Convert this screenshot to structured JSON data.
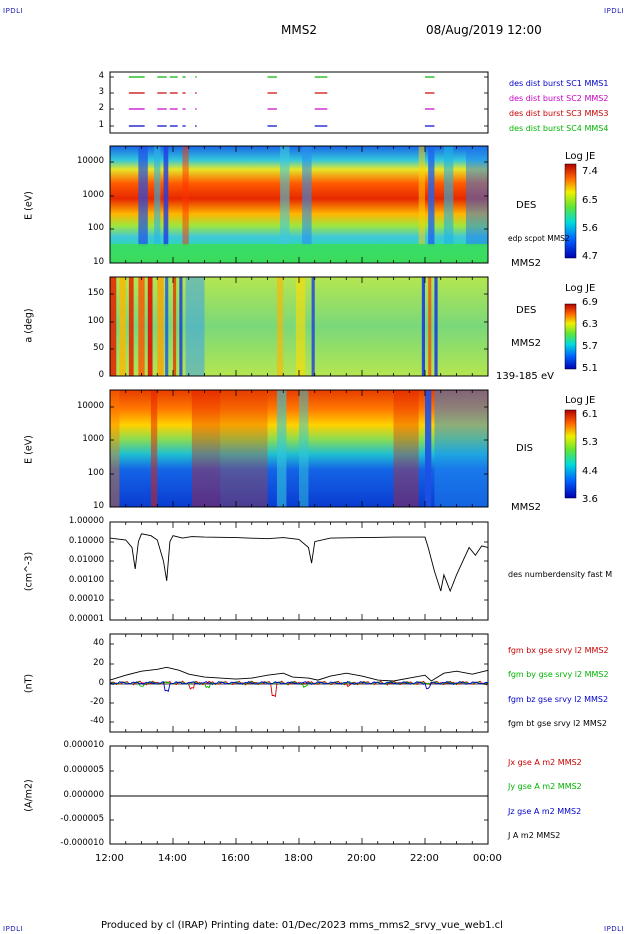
{
  "header": {
    "corner_label": "IPDLI",
    "spacecraft": "MMS2",
    "datetime": "08/Aug/2019 12:00"
  },
  "panels": {
    "burst": {
      "yticks": [
        "4",
        "3",
        "2",
        "1"
      ],
      "legend": [
        {
          "text": "des dist burst SC1 MMS1",
          "color": "#0000c8"
        },
        {
          "text": "des dist burst SC2 MMS2",
          "color": "#c800c8"
        },
        {
          "text": "des dist burst SC3 MMS3",
          "color": "#c80000"
        },
        {
          "text": "des dist burst SC4 MMS4",
          "color": "#00b400"
        }
      ]
    },
    "e_spec": {
      "ylabel": "E (eV)",
      "yticks": [
        "10000",
        "1000",
        "100",
        "10"
      ],
      "right_label": "DES",
      "overlay_label": "edp scpot MMS2",
      "bottom_label": "MMS2",
      "cbar_title": "Log JE",
      "cbar_ticks": [
        "7.4",
        "6.5",
        "5.6",
        "4.7"
      ]
    },
    "pitch": {
      "ylabel": "a (deg)",
      "yticks": [
        "150",
        "100",
        "50",
        "0"
      ],
      "right_label": "DES",
      "mid_label": "MMS2",
      "bottom_label": "139-185 eV",
      "cbar_title": "Log JE",
      "cbar_ticks": [
        "6.9",
        "6.3",
        "5.7",
        "5.1"
      ]
    },
    "i_spec": {
      "ylabel": "E (eV)",
      "yticks": [
        "10000",
        "1000",
        "100",
        "10"
      ],
      "right_label": "DIS",
      "bottom_label": "MMS2",
      "cbar_title": "Log JE",
      "cbar_ticks": [
        "6.1",
        "5.3",
        "4.4",
        "3.6"
      ]
    },
    "density": {
      "ylabel": "(cm^-3)",
      "yticks": [
        "1.00000",
        "0.10000",
        "0.01000",
        "0.00100",
        "0.00010",
        "0.00001"
      ],
      "legend": "des numberdensity fast M"
    },
    "bfield": {
      "ylabel": "(nT)",
      "yticks": [
        "40",
        "20",
        "0",
        "-20",
        "-40"
      ],
      "legend": [
        {
          "text": "fgm bx gse srvy l2 MMS2",
          "color": "#c80000"
        },
        {
          "text": "fgm by gse srvy l2 MMS2",
          "color": "#00b400"
        },
        {
          "text": "fgm bz gse srvy l2 MMS2",
          "color": "#0000c8"
        },
        {
          "text": "fgm bt gse srvy l2 MMS2",
          "color": "#000000"
        }
      ]
    },
    "current": {
      "ylabel": "(A/m2)",
      "yticks": [
        "0.000010",
        "0.000005",
        "0.000000",
        "-0.000005",
        "-0.000010"
      ],
      "legend": [
        {
          "text": "Jx gse A m2 MMS2",
          "color": "#c80000"
        },
        {
          "text": "Jy gse A m2 MMS2",
          "color": "#00b400"
        },
        {
          "text": "Jz gse A m2 MMS2",
          "color": "#0000c8"
        },
        {
          "text": "J A m2 MMS2",
          "color": "#000000"
        }
      ]
    }
  },
  "xaxis": {
    "ticks": [
      "12:00",
      "14:00",
      "16:00",
      "18:00",
      "20:00",
      "22:00",
      "00:00"
    ]
  },
  "footer": {
    "text": "Produced by cl (IRAP)   Printing date: 01/Dec/2023   mms_mms2_srvy_vue_web1.cl"
  },
  "chart_data": {
    "type": "line",
    "x_unit": "hours",
    "x_range": [
      12,
      24
    ],
    "density_ylim": [
      1e-05,
      1
    ],
    "density_scale": "log",
    "bfield_ylim": [
      -50,
      50
    ],
    "current_ylim": [
      -1e-05,
      1e-05
    ],
    "density_series": [
      [
        12.0,
        0.15
      ],
      [
        12.5,
        0.12
      ],
      [
        12.7,
        0.05
      ],
      [
        12.8,
        0.004
      ],
      [
        12.9,
        0.1
      ],
      [
        13.0,
        0.25
      ],
      [
        13.3,
        0.2
      ],
      [
        13.5,
        0.12
      ],
      [
        13.7,
        0.01
      ],
      [
        13.8,
        0.001
      ],
      [
        13.9,
        0.1
      ],
      [
        14.0,
        0.2
      ],
      [
        14.3,
        0.15
      ],
      [
        14.6,
        0.18
      ],
      [
        15.0,
        0.17
      ],
      [
        16.0,
        0.16
      ],
      [
        17.0,
        0.14
      ],
      [
        17.5,
        0.16
      ],
      [
        18.0,
        0.13
      ],
      [
        18.3,
        0.05
      ],
      [
        18.4,
        0.008
      ],
      [
        18.5,
        0.1
      ],
      [
        19.0,
        0.15
      ],
      [
        20.0,
        0.16
      ],
      [
        21.0,
        0.17
      ],
      [
        22.0,
        0.17
      ],
      [
        22.1,
        0.05
      ],
      [
        22.3,
        0.003
      ],
      [
        22.5,
        0.0003
      ],
      [
        22.6,
        0.002
      ],
      [
        22.8,
        0.0003
      ],
      [
        23.0,
        0.002
      ],
      [
        23.2,
        0.01
      ],
      [
        23.4,
        0.05
      ],
      [
        23.6,
        0.02
      ],
      [
        23.8,
        0.06
      ],
      [
        24.0,
        0.05
      ]
    ],
    "bt_series": [
      [
        12.0,
        3
      ],
      [
        12.5,
        8
      ],
      [
        13.0,
        12
      ],
      [
        13.5,
        14
      ],
      [
        13.8,
        16
      ],
      [
        14.2,
        13
      ],
      [
        14.5,
        9
      ],
      [
        15.0,
        6
      ],
      [
        15.5,
        5
      ],
      [
        16.0,
        4
      ],
      [
        16.5,
        5
      ],
      [
        17.0,
        8
      ],
      [
        17.5,
        10
      ],
      [
        17.8,
        6
      ],
      [
        18.3,
        5
      ],
      [
        18.6,
        3
      ],
      [
        19.0,
        7
      ],
      [
        19.5,
        10
      ],
      [
        20.0,
        7
      ],
      [
        20.5,
        3
      ],
      [
        21.0,
        2
      ],
      [
        21.5,
        5
      ],
      [
        22.0,
        8
      ],
      [
        22.2,
        2
      ],
      [
        22.6,
        10
      ],
      [
        23.0,
        12
      ],
      [
        23.5,
        9
      ],
      [
        24.0,
        13
      ]
    ]
  }
}
